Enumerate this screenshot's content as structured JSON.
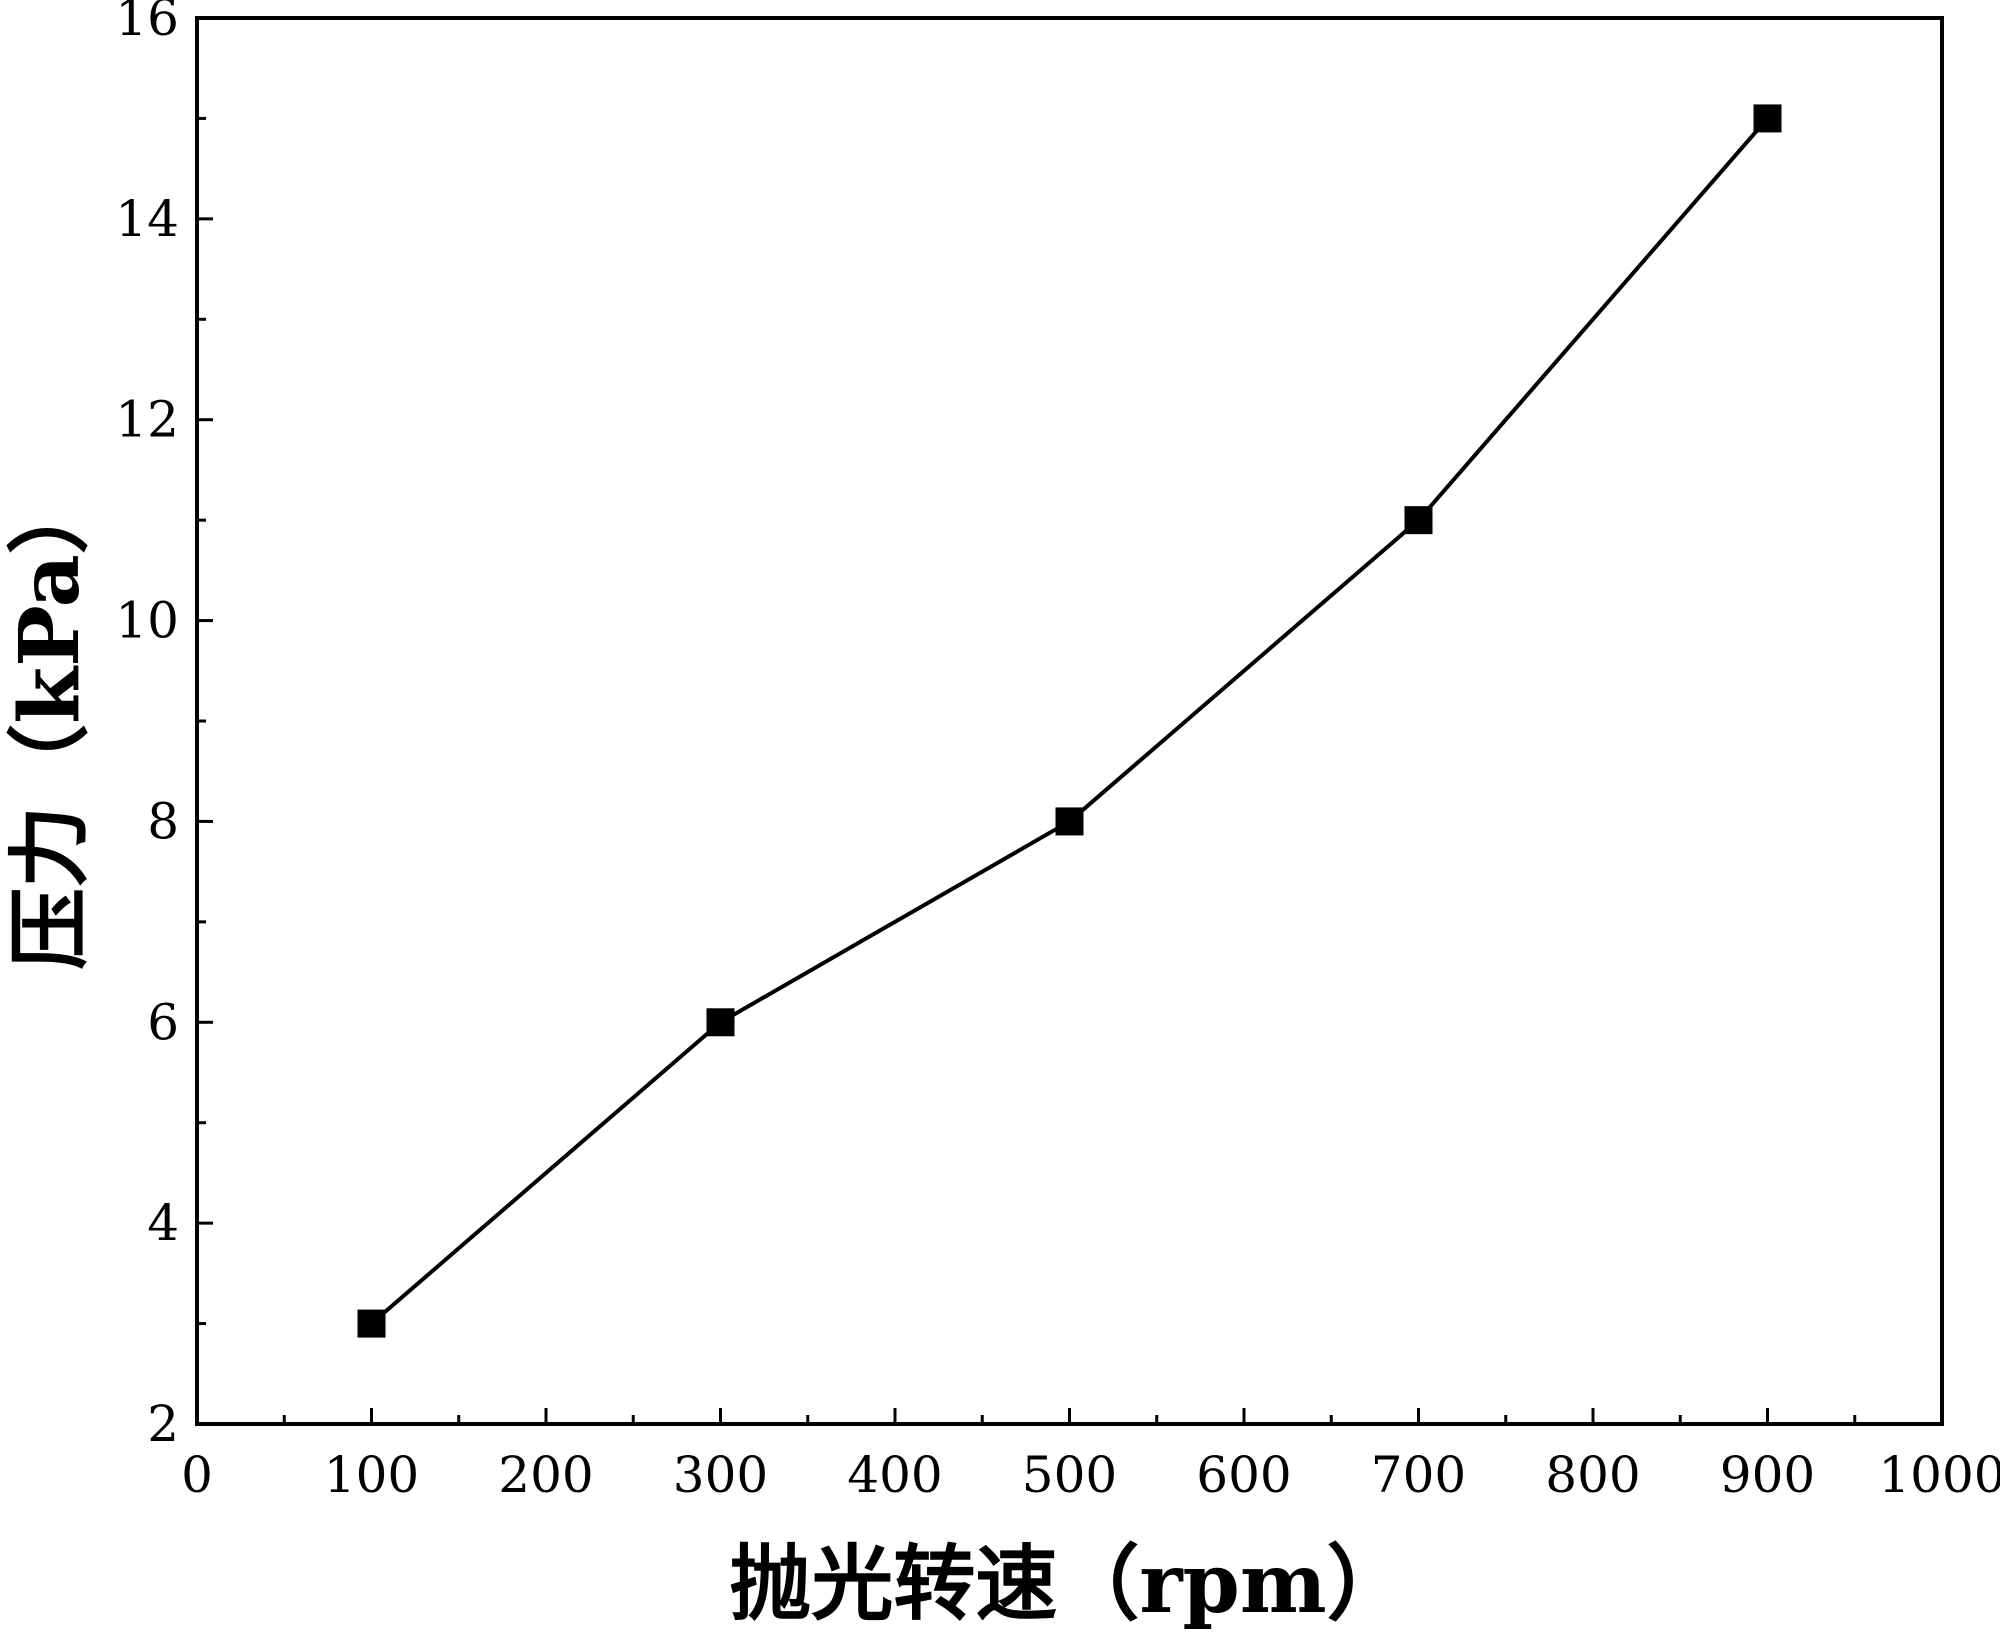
{
  "chart_data": {
    "type": "line",
    "title": "",
    "xlabel": "抛光转速（rpm）",
    "ylabel": "压力（kPa）",
    "xlim": [
      0,
      1000
    ],
    "ylim": [
      2,
      16
    ],
    "x_ticks": [
      0,
      100,
      200,
      300,
      400,
      500,
      600,
      700,
      800,
      900,
      1000
    ],
    "y_ticks": [
      2,
      4,
      6,
      8,
      10,
      12,
      14,
      16
    ],
    "x_minor_step": 50,
    "y_minor_step": 1,
    "grid": false,
    "legend": "none",
    "marker": "square",
    "series": [
      {
        "x": [
          100,
          300,
          500,
          700,
          900
        ],
        "y": [
          3,
          6,
          8,
          11,
          15
        ],
        "color": "#000000"
      }
    ]
  }
}
